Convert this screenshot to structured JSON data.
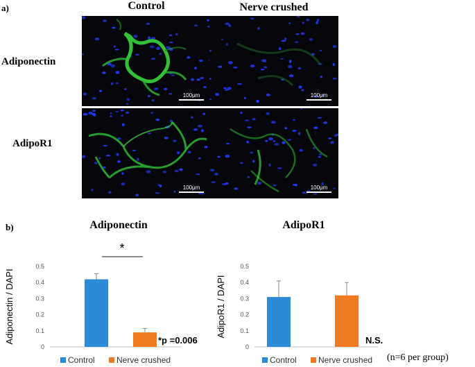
{
  "panel_a_label": "a)",
  "panel_b_label": "b)",
  "micrographs": {
    "columns": [
      "Control",
      "Nerve crushed"
    ],
    "rows": [
      "Adiponectin",
      "AdipoR1"
    ],
    "scale_bar_label": "100μm",
    "colors": {
      "background": "#05060a",
      "dapi": "#1f3cff",
      "stain": "#39d43c"
    }
  },
  "chart_data": [
    {
      "type": "bar",
      "title": "Adiponectin",
      "ylabel": "Adiponectin / DAPI",
      "xlabel": "",
      "ylim": [
        0,
        0.5
      ],
      "yticks": [
        0,
        0.1,
        0.2,
        0.3,
        0.4,
        0.5
      ],
      "ytick_labels": [
        "0",
        "0.1",
        "0.2",
        "0.3",
        "0.4",
        "0.5"
      ],
      "categories": [
        "Control",
        "Nerve crushed"
      ],
      "values": [
        0.42,
        0.09
      ],
      "errors": [
        0.035,
        0.025
      ],
      "colors": [
        "#2b8bd6",
        "#ee7a22"
      ],
      "significance_marker": "*",
      "annotation": "*p =0.006",
      "legend": [
        "Control",
        "Nerve crushed"
      ],
      "legend_position": "bottom",
      "grid": false
    },
    {
      "type": "bar",
      "title": "AdipoR1",
      "ylabel": "AdipoR1 / DAPI",
      "xlabel": "",
      "ylim": [
        0,
        0.5
      ],
      "yticks": [
        0,
        0.1,
        0.2,
        0.3,
        0.4,
        0.5
      ],
      "ytick_labels": [
        "0",
        "0.1",
        "0.2",
        "0.3",
        "0.4",
        "0.5"
      ],
      "categories": [
        "Control",
        "Nerve crushed"
      ],
      "values": [
        0.31,
        0.32
      ],
      "errors": [
        0.1,
        0.08
      ],
      "colors": [
        "#2b8bd6",
        "#ee7a22"
      ],
      "annotation": "N.S.",
      "legend": [
        "Control",
        "Nerve crushed"
      ],
      "legend_position": "bottom",
      "grid": false
    }
  ],
  "footnote": "(n=6 per group)"
}
